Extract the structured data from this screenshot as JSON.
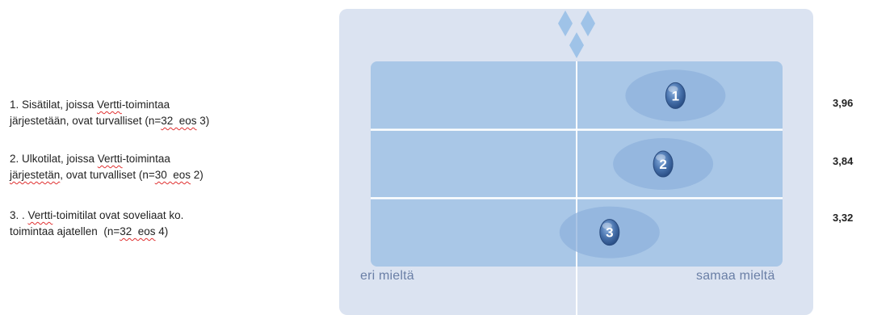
{
  "statements": [
    {
      "line1": [
        "1. Sisätilat, joissa ",
        "Vertti",
        "-toimintaa"
      ],
      "line2": [
        "järjestetään, ovat turvalliset (n=",
        "32  eos",
        " 3)"
      ]
    },
    {
      "line1": [
        "2. Ulkotilat, joissa ",
        "Vertti",
        "-toimintaa"
      ],
      "line2": [
        "järjestetän",
        ", ovat turvalliset (n=",
        "30  eos",
        " 2)"
      ]
    },
    {
      "line1": [
        "3. . ",
        "Vertti",
        "-toimitilat ovat soveliaat ko."
      ],
      "line2": [
        "toimintaa ajatellen  (n=",
        "32  eos",
        " 4)"
      ]
    }
  ],
  "chart_data": {
    "type": "scatter",
    "scale_labels": {
      "min": "eri mieltä",
      "max": "samaa mieltä"
    },
    "xlim": [
      1,
      5
    ],
    "items": [
      {
        "label": "1",
        "value": 3.96,
        "value_text": "3,96"
      },
      {
        "label": "2",
        "value": 3.84,
        "value_text": "3,84"
      },
      {
        "label": "3",
        "value": 3.32,
        "value_text": "3,32"
      }
    ]
  },
  "colors": {
    "outer_panel": "#dbe3f1",
    "inner_panel": "#a9c7e7",
    "grid": "#ffffff",
    "marker_halo": "#8fb1dc",
    "marker": "#3f6aa4",
    "axis_text": "#6a7fa6",
    "diamond": "#9fc3e8"
  },
  "icons": [
    "diamond-cluster-icon"
  ]
}
